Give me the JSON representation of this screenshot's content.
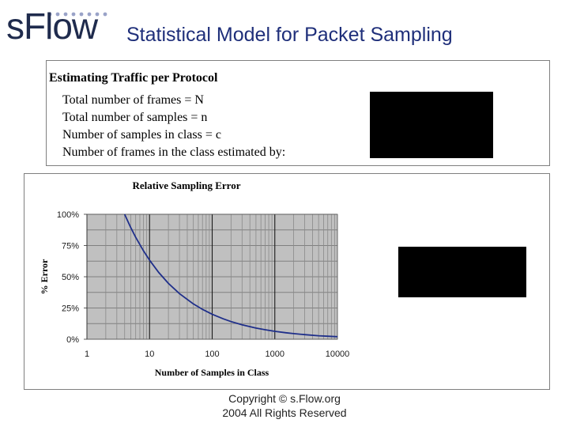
{
  "header": {
    "logo_text": "sFlow",
    "title": "Statistical Model for Packet Sampling"
  },
  "estimate": {
    "heading": "Estimating Traffic per Protocol",
    "lines": [
      "Total number of frames = N",
      "Total number of samples = n",
      "Number of samples in class = c",
      "Number of frames in the class estimated by:"
    ]
  },
  "chart_data": {
    "type": "line",
    "title": "Relative Sampling Error",
    "xlabel": "Number of Samples in Class",
    "ylabel": "% Error",
    "x_scale": "log",
    "xlim": [
      1,
      10000
    ],
    "ylim": [
      0,
      1
    ],
    "x_ticks": [
      "1",
      "10",
      "100",
      "1000",
      "10000"
    ],
    "y_ticks": [
      "0%",
      "25%",
      "50%",
      "75%",
      "100%"
    ],
    "grid": true,
    "background": "#c0c0c0",
    "line_color": "#1f2f8a",
    "series": [
      {
        "x": [
          4,
          5,
          6,
          8,
          10,
          14,
          20,
          30,
          50,
          70,
          100,
          150,
          200,
          300,
          500,
          700,
          1000,
          1500,
          2000,
          3000,
          5000,
          7000,
          10000
        ],
        "y": [
          1.0,
          0.894,
          0.816,
          0.707,
          0.632,
          0.535,
          0.447,
          0.365,
          0.283,
          0.239,
          0.2,
          0.163,
          0.141,
          0.115,
          0.089,
          0.076,
          0.063,
          0.052,
          0.045,
          0.037,
          0.028,
          0.024,
          0.02
        ]
      }
    ]
  },
  "footer": {
    "copyright_line1": "Copyright © s.Flow.org",
    "copyright_line2": "2004 All Rights Reserved"
  }
}
